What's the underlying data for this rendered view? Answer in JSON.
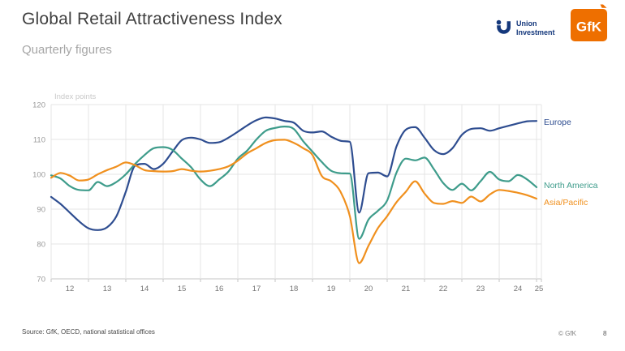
{
  "header": {
    "title": "Global Retail Attractiveness Index",
    "subtitle": "Quarterly figures"
  },
  "logos": {
    "union_investment": {
      "line1": "Union",
      "line2": "Investment",
      "color": "#15387c"
    },
    "gfk": {
      "text": "GfK",
      "bg_color": "#ee6f00"
    }
  },
  "footer": {
    "source": "Source: GfK, OECD, national statistical offices",
    "copyright": "© GfK",
    "page_number": "8"
  },
  "chart_data": {
    "type": "line",
    "axis_title": "Index points",
    "grid": true,
    "legend_position": "line-end-labels-right",
    "ylim": [
      70,
      120
    ],
    "y_ticks": [
      70,
      80,
      90,
      100,
      110,
      120
    ],
    "x_range": [
      2012,
      2025.13
    ],
    "x_tick_labels": [
      "12",
      "13",
      "14",
      "15",
      "16",
      "17",
      "18",
      "19",
      "20",
      "21",
      "22",
      "23",
      "24",
      "25"
    ],
    "x": [
      2012,
      2012.25,
      2012.5,
      2012.75,
      2013,
      2013.25,
      2013.5,
      2013.75,
      2014,
      2014.25,
      2014.5,
      2014.75,
      2015,
      2015.25,
      2015.5,
      2015.75,
      2016,
      2016.25,
      2016.5,
      2016.75,
      2017,
      2017.25,
      2017.5,
      2017.75,
      2018,
      2018.25,
      2018.5,
      2018.75,
      2019,
      2019.25,
      2019.5,
      2019.75,
      2020,
      2020.25,
      2020.5,
      2020.75,
      2021,
      2021.25,
      2021.5,
      2021.75,
      2022,
      2022.25,
      2022.5,
      2022.75,
      2023,
      2023.25,
      2023.5,
      2023.75,
      2024,
      2024.25,
      2024.5,
      2024.75,
      2025
    ],
    "series": [
      {
        "name": "Europe",
        "color": "#2e4d90",
        "values": [
          93.5,
          91.5,
          89.0,
          86.5,
          84.5,
          84.0,
          84.8,
          88.0,
          95.0,
          102.5,
          103.0,
          101.5,
          103.0,
          106.5,
          109.8,
          110.5,
          110.0,
          109.0,
          109.2,
          110.5,
          112.2,
          114.0,
          115.5,
          116.3,
          116.0,
          115.3,
          114.8,
          112.5,
          112.0,
          112.3,
          110.8,
          109.6,
          109.3,
          89.0,
          100.3,
          100.5,
          99.4,
          108.0,
          112.8,
          113.5,
          110.5,
          107.0,
          105.8,
          107.5,
          111.3,
          113.0,
          113.2,
          112.5,
          113.2,
          113.9,
          114.6,
          115.2,
          115.3
        ]
      },
      {
        "name": "North America",
        "color": "#3e9c8b",
        "values": [
          99.7,
          98.8,
          96.6,
          95.5,
          95.4,
          97.8,
          96.6,
          97.8,
          100.0,
          103.0,
          105.5,
          107.5,
          107.8,
          107.0,
          104.5,
          102.0,
          98.5,
          96.6,
          98.5,
          100.8,
          104.5,
          106.8,
          110.0,
          112.5,
          113.3,
          113.7,
          113.0,
          109.5,
          106.5,
          103.5,
          101.0,
          100.3,
          100.2,
          81.5,
          87.0,
          89.5,
          92.5,
          100.5,
          104.5,
          104.0,
          104.8,
          101.5,
          97.5,
          95.5,
          97.3,
          95.4,
          98.0,
          100.7,
          98.5,
          98.0,
          99.8,
          98.5,
          96.3
        ]
      },
      {
        "name": "Asia/Pacific",
        "color": "#f0901e",
        "values": [
          99.0,
          100.4,
          99.6,
          98.2,
          98.5,
          100.0,
          101.2,
          102.2,
          103.4,
          102.6,
          101.2,
          100.9,
          100.8,
          100.9,
          101.5,
          101.0,
          100.8,
          101.0,
          101.5,
          102.3,
          103.9,
          106.0,
          107.5,
          109.0,
          109.8,
          109.9,
          109.0,
          107.5,
          105.5,
          99.5,
          98.0,
          95.0,
          88.0,
          74.5,
          79.5,
          84.5,
          88.0,
          92.0,
          95.0,
          98.0,
          94.5,
          91.8,
          91.5,
          92.3,
          91.8,
          93.6,
          92.2,
          94.2,
          95.5,
          95.2,
          94.7,
          94.0,
          93.0
        ]
      }
    ]
  }
}
